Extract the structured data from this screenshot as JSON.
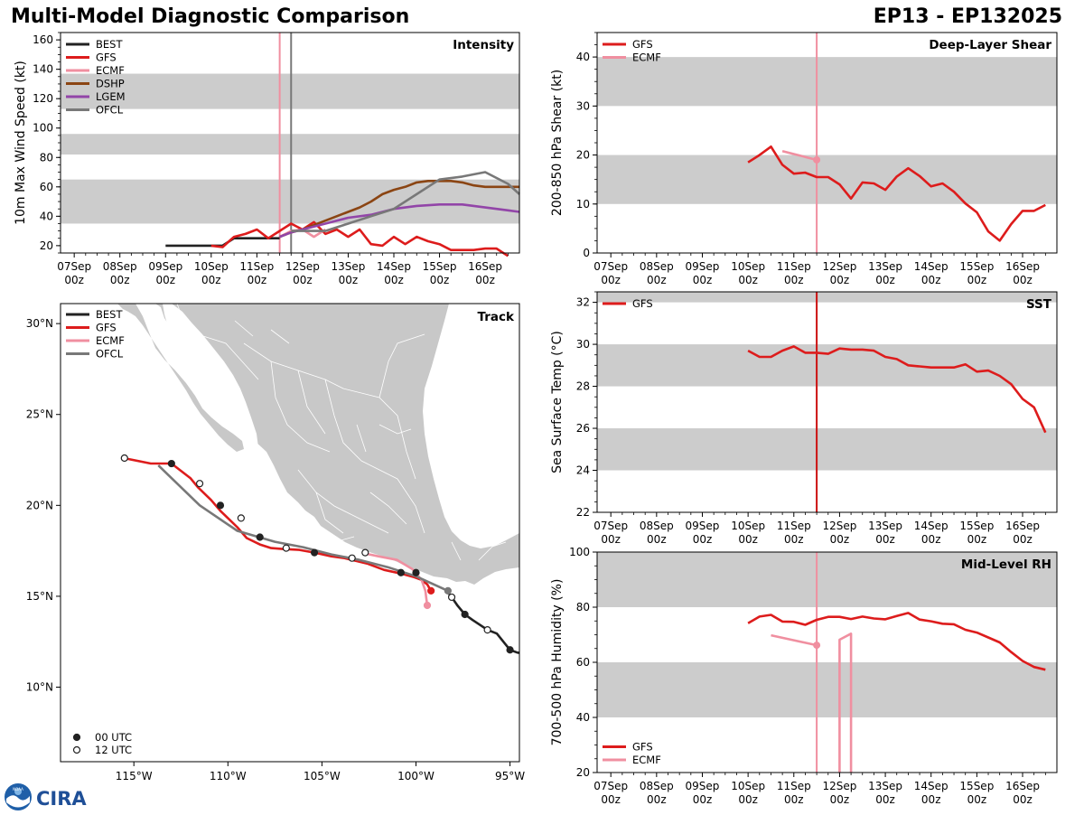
{
  "header": {
    "left_title": "Multi-Model Diagnostic Comparison",
    "right_title": "EP13 - EP132025"
  },
  "logo": {
    "noaa": "NOAA",
    "cira": "CIRA"
  },
  "colors": {
    "BEST": "#222222",
    "GFS": "#dd1c1c",
    "ECMF": "#f08fa0",
    "DSHP": "#8b4513",
    "LGEM": "#9245a8",
    "OFCL": "#787878",
    "band": "#cccccc",
    "land": "#c8c8c8",
    "now_ecmf": "#f08fa0",
    "now_ofcl": "#787878",
    "now_gfs": "#cc1111"
  },
  "time_axis": {
    "range": [
      -0.3,
      9.75
    ],
    "ticks": [
      0,
      1,
      2,
      3,
      4,
      5,
      6,
      7,
      8,
      9
    ],
    "top_labels": [
      "07Sep",
      "08Sep",
      "09Sep",
      "10Sep",
      "11Sep",
      "12Sep",
      "13Sep",
      "14Sep",
      "15Sep",
      "16Sep"
    ],
    "bottom_label": "00z"
  },
  "chart_data": [
    {
      "id": "intensity",
      "type": "line",
      "title": "Intensity",
      "xlabel": "",
      "ylabel": "10m Max Wind Speed (kt)",
      "ylim": [
        15,
        165
      ],
      "yticks": [
        20,
        40,
        60,
        80,
        100,
        120,
        140,
        160
      ],
      "minor_step": 5,
      "bands": [
        [
          35,
          65
        ],
        [
          82,
          96
        ],
        [
          113,
          137
        ]
      ],
      "legend": [
        "BEST",
        "GFS",
        "ECMF",
        "DSHP",
        "LGEM",
        "OFCL"
      ],
      "vlines": [
        {
          "x": 4.5,
          "color": "now_ecmf"
        },
        {
          "x": 4.75,
          "color": "now_ofcl"
        }
      ],
      "series": [
        {
          "name": "BEST",
          "x": [
            2,
            2.25,
            2.5,
            2.75,
            3,
            3.25,
            3.5,
            3.75,
            4,
            4.25,
            4.5
          ],
          "y": [
            20,
            20,
            20,
            20,
            20,
            20,
            25,
            25,
            25,
            25,
            25
          ]
        },
        {
          "name": "GFS",
          "x": [
            3,
            3.25,
            3.5,
            3.75,
            4,
            4.25,
            4.5,
            4.75,
            5,
            5.25,
            5.5,
            5.75,
            6,
            6.25,
            6.5,
            6.75,
            7,
            7.25,
            7.5,
            7.75,
            8,
            8.25,
            8.5,
            8.75,
            9,
            9.25,
            9.5
          ],
          "y": [
            20,
            19,
            26,
            28,
            31,
            25,
            30,
            35,
            31,
            36,
            28,
            31,
            26,
            31,
            21,
            20,
            26,
            21,
            26,
            23,
            21,
            17,
            17,
            17,
            18,
            18,
            13
          ]
        },
        {
          "name": "ECMF",
          "x": [
            4.5,
            4.75,
            5,
            5.25,
            5.5
          ],
          "y": [
            26,
            30,
            31,
            26,
            31
          ]
        },
        {
          "name": "DSHP",
          "x": [
            4.5,
            4.75,
            5,
            5.25,
            5.5,
            5.75,
            6,
            6.25,
            6.5,
            6.75,
            7,
            7.25,
            7.5,
            7.75,
            8,
            8.25,
            8.5,
            8.75,
            9,
            9.25,
            9.5,
            9.75
          ],
          "y": [
            26,
            29,
            31,
            34,
            37,
            40,
            43,
            46,
            50,
            55,
            58,
            60,
            63,
            64,
            64,
            64,
            63,
            61,
            60,
            60,
            60,
            60
          ]
        },
        {
          "name": "LGEM",
          "x": [
            4.5,
            4.75,
            5,
            5.5,
            6,
            6.5,
            7,
            7.5,
            8,
            8.5,
            9,
            9.5,
            9.75
          ],
          "y": [
            26,
            29,
            31,
            35,
            39,
            41,
            45,
            47,
            48,
            48,
            46,
            44,
            43
          ]
        },
        {
          "name": "OFCL",
          "x": [
            4.75,
            5,
            5.5,
            6,
            6.5,
            7,
            7.5,
            8,
            8.5,
            9,
            9.5,
            9.75
          ],
          "y": [
            30,
            30,
            30,
            35,
            40,
            45,
            55,
            65,
            67,
            70,
            62,
            55
          ]
        }
      ]
    },
    {
      "id": "shear",
      "type": "line",
      "title": "Deep-Layer Shear",
      "xlabel": "",
      "ylabel": "200-850 hPa Shear (kt)",
      "ylim": [
        0,
        45
      ],
      "yticks": [
        0,
        10,
        20,
        30,
        40
      ],
      "minor_step": 2.5,
      "bands": [
        [
          10,
          20
        ],
        [
          30,
          40
        ]
      ],
      "legend": [
        "GFS",
        "ECMF"
      ],
      "vlines": [
        {
          "x": 4.5,
          "color": "now_ecmf"
        }
      ],
      "series": [
        {
          "name": "GFS",
          "x": [
            3,
            3.25,
            3.5,
            3.75,
            4,
            4.25,
            4.5,
            4.75,
            5,
            5.25,
            5.5,
            5.75,
            6,
            6.25,
            6.5,
            6.75,
            7,
            7.25,
            7.5,
            7.75,
            8,
            8.25,
            8.5,
            8.75,
            9,
            9.25,
            9.5,
            9.75
          ],
          "y": [
            18.5,
            20,
            21.7,
            18,
            16.2,
            16.4,
            15.5,
            15.5,
            14,
            11.1,
            14.4,
            14.2,
            12.9,
            15.6,
            17.3,
            15.7,
            13.6,
            14.2,
            12.5,
            10.1,
            8.3,
            4.4,
            2.5,
            5.9,
            8.6,
            8.6,
            9.8,
            null
          ]
        },
        {
          "name": "ECMF",
          "x": [
            3.75,
            4,
            4.25,
            4.5
          ],
          "y": [
            20.8,
            20.2,
            19.6,
            19
          ],
          "end_marker": true
        }
      ]
    },
    {
      "id": "track",
      "type": "scatter",
      "title": "Track",
      "xlabel": "",
      "ylabel": "",
      "lon_range": [
        -118.9,
        -94.5
      ],
      "lat_range": [
        5.9,
        31.1
      ],
      "xticks": [
        -115,
        -110,
        -105,
        -100,
        -95
      ],
      "xtick_labels": [
        "115°W",
        "110°W",
        "105°W",
        "100°W",
        "95°W"
      ],
      "yticks": [
        10,
        15,
        20,
        25,
        30
      ],
      "ytick_labels": [
        "10°N",
        "15°N",
        "20°N",
        "25°N",
        "30°N"
      ],
      "legend": [
        "BEST",
        "GFS",
        "ECMF",
        "OFCL"
      ],
      "marker_legend": [
        {
          "label": "00 UTC",
          "fill": "filled"
        },
        {
          "label": "12 UTC",
          "fill": "open"
        }
      ],
      "tracks": [
        {
          "name": "BEST",
          "lon": [
            -94.2,
            -94.6,
            -95.0,
            -95.7,
            -96.2,
            -97.0,
            -97.4,
            -97.8,
            -98.1,
            -98.4
          ],
          "lat": [
            11.85,
            11.9,
            12.05,
            12.95,
            13.15,
            13.7,
            14.0,
            14.5,
            14.95,
            15.35
          ]
        },
        {
          "name": "GFS",
          "lon": [
            -99.2,
            -99.4,
            -99.7,
            -100.1,
            -100.8,
            -101.7,
            -102.6,
            -103.8,
            -104.5,
            -105.4,
            -106.2,
            -107.1,
            -107.7,
            -108.3,
            -109.0,
            -109.5,
            -110.0,
            -110.4,
            -110.9,
            -111.6,
            -112.0,
            -113.0,
            -114.1,
            -115.3,
            -115.5
          ],
          "lat": [
            15.3,
            15.65,
            15.9,
            16.05,
            16.25,
            16.45,
            16.8,
            17.1,
            17.2,
            17.4,
            17.55,
            17.6,
            17.65,
            17.85,
            18.2,
            18.8,
            19.3,
            19.7,
            20.3,
            21.0,
            21.5,
            22.3,
            22.3,
            22.55,
            22.6
          ]
        },
        {
          "name": "ECMF",
          "lon": [
            -99.4,
            -99.45,
            -99.5,
            -99.7,
            -100.2,
            -101.0,
            -102.0,
            -102.7
          ],
          "lat": [
            14.5,
            14.9,
            15.3,
            15.9,
            16.5,
            17.0,
            17.2,
            17.35
          ]
        },
        {
          "name": "OFCL",
          "lon": [
            -98.3,
            -100.0,
            -101.5,
            -103.0,
            -104.5,
            -106.0,
            -107.5,
            -109.5,
            -111.5,
            -113.7
          ],
          "lat": [
            15.3,
            16.1,
            16.6,
            17.0,
            17.3,
            17.7,
            18.0,
            18.6,
            20.0,
            22.2
          ]
        }
      ],
      "markers": [
        {
          "lon": -98.3,
          "lat": 15.3,
          "type": "filled",
          "color": "OFCL"
        },
        {
          "lon": -95.0,
          "lat": 12.05,
          "type": "filled",
          "color": "BEST"
        },
        {
          "lon": -96.2,
          "lat": 13.15,
          "type": "open",
          "color": "BEST"
        },
        {
          "lon": -97.4,
          "lat": 14.0,
          "type": "filled",
          "color": "BEST"
        },
        {
          "lon": -98.1,
          "lat": 14.95,
          "type": "open",
          "color": "BEST"
        },
        {
          "lon": -99.2,
          "lat": 15.3,
          "type": "filled",
          "color": "GFS"
        },
        {
          "lon": -99.4,
          "lat": 14.5,
          "type": "filled",
          "color": "ECMF"
        },
        {
          "lon": -100.0,
          "lat": 16.3,
          "type": "filled",
          "color": "BEST"
        },
        {
          "lon": -100.8,
          "lat": 16.3,
          "type": "filled",
          "color": "BEST"
        },
        {
          "lon": -102.7,
          "lat": 17.4,
          "type": "open",
          "color": "BEST"
        },
        {
          "lon": -103.4,
          "lat": 17.1,
          "type": "open",
          "color": "BEST"
        },
        {
          "lon": -105.4,
          "lat": 17.4,
          "type": "filled",
          "color": "BEST"
        },
        {
          "lon": -106.9,
          "lat": 17.65,
          "type": "open",
          "color": "BEST"
        },
        {
          "lon": -108.3,
          "lat": 18.25,
          "type": "filled",
          "color": "BEST"
        },
        {
          "lon": -109.3,
          "lat": 19.3,
          "type": "open",
          "color": "BEST"
        },
        {
          "lon": -110.4,
          "lat": 20.0,
          "type": "filled",
          "color": "BEST"
        },
        {
          "lon": -111.5,
          "lat": 21.2,
          "type": "open",
          "color": "BEST"
        },
        {
          "lon": -113.0,
          "lat": 22.3,
          "type": "filled",
          "color": "BEST"
        },
        {
          "lon": -115.5,
          "lat": 22.6,
          "type": "open",
          "color": "BEST"
        }
      ]
    },
    {
      "id": "sst",
      "type": "line",
      "title": "SST",
      "xlabel": "",
      "ylabel": "Sea Surface Temp (°C)",
      "ylim": [
        22,
        32.5
      ],
      "yticks": [
        22,
        24,
        26,
        28,
        30,
        32
      ],
      "minor_step": 0.5,
      "bands": [
        [
          24,
          26
        ],
        [
          28,
          30
        ],
        [
          32,
          32.5
        ]
      ],
      "legend": [
        "GFS"
      ],
      "vlines": [
        {
          "x": 4.5,
          "color": "now_gfs"
        }
      ],
      "series": [
        {
          "name": "GFS",
          "x": [
            3,
            3.25,
            3.5,
            3.75,
            4,
            4.25,
            4.5,
            4.75,
            5,
            5.25,
            5.5,
            5.75,
            6,
            6.25,
            6.5,
            6.75,
            7,
            7.25,
            7.5,
            7.75,
            8,
            8.25,
            8.5,
            8.75,
            9,
            9.25,
            9.5
          ],
          "y": [
            29.7,
            29.4,
            29.4,
            29.7,
            29.9,
            29.6,
            29.6,
            29.55,
            29.8,
            29.75,
            29.75,
            29.7,
            29.4,
            29.3,
            29.0,
            28.95,
            28.9,
            28.9,
            28.9,
            29.05,
            28.7,
            28.75,
            28.5,
            28.1,
            27.4,
            27.0,
            25.8
          ]
        }
      ]
    },
    {
      "id": "rh",
      "type": "line",
      "title": "Mid-Level RH",
      "xlabel": "",
      "ylabel": "700-500 hPa Humidity (%)",
      "ylim": [
        20,
        100
      ],
      "yticks": [
        20,
        40,
        60,
        80,
        100
      ],
      "minor_step": 5,
      "bands": [
        [
          40,
          60
        ],
        [
          80,
          100
        ]
      ],
      "legend": [
        "GFS",
        "ECMF"
      ],
      "legend_pos": "bottom-left",
      "vlines": [
        {
          "x": 4.5,
          "color": "now_ecmf"
        }
      ],
      "series": [
        {
          "name": "GFS",
          "x": [
            3,
            3.25,
            3.5,
            3.75,
            4,
            4.25,
            4.5,
            4.75,
            5,
            5.25,
            5.5,
            5.75,
            6,
            6.25,
            6.5,
            6.75,
            7,
            7.25,
            7.5,
            7.75,
            8,
            8.25,
            8.5,
            8.75,
            9,
            9.25,
            9.5
          ],
          "y": [
            74.2,
            76.6,
            77.2,
            74.8,
            74.7,
            73.6,
            75.4,
            76.5,
            76.5,
            75.7,
            76.6,
            75.9,
            75.6,
            76.8,
            77.9,
            75.5,
            74.9,
            74.0,
            73.8,
            71.8,
            70.8,
            69.0,
            67.2,
            63.7,
            60.5,
            58.3,
            57.3
          ]
        },
        {
          "name": "ECMF",
          "x": [
            3.5,
            4,
            4.5
          ],
          "y": [
            69.8,
            68.0,
            66.2
          ],
          "end_marker": true
        },
        {
          "name": "ECMF",
          "x": [
            5,
            5,
            5.25,
            5.25
          ],
          "y": [
            20,
            68.2,
            70.4,
            20
          ],
          "no_legend": true
        }
      ]
    }
  ]
}
